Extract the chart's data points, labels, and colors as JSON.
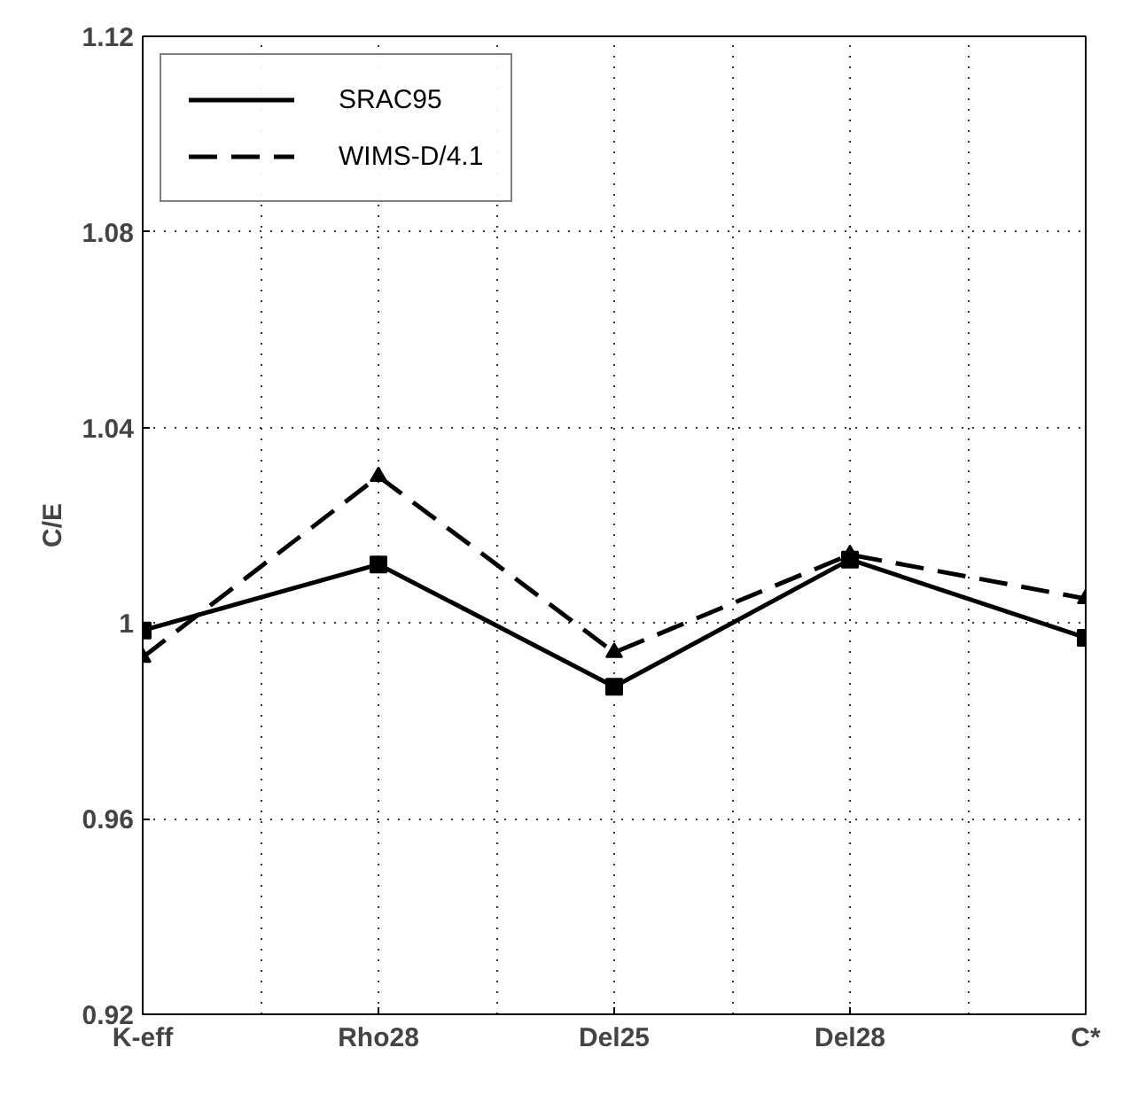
{
  "chart_data": {
    "type": "line",
    "ylabel": "C/E",
    "categories": [
      "K-eff",
      "Rho28",
      "Del25",
      "Del28",
      "C*"
    ],
    "series": [
      {
        "name": "SRAC95",
        "color": "#000000",
        "values": [
          0.9985,
          1.012,
          0.987,
          1.013,
          0.997
        ],
        "marker": "square",
        "line_style": "solid"
      },
      {
        "name": "WIMS-D/4.1",
        "color": "#000000",
        "values": [
          0.993,
          1.03,
          0.994,
          1.014,
          1.005
        ],
        "marker": "triangle",
        "line_style": "dashed"
      }
    ],
    "ylim": [
      0.92,
      1.12
    ],
    "yticks": [
      0.92,
      0.96,
      {
        "value": 1,
        "label": "1"
      },
      1.04,
      1.08,
      1.12
    ],
    "grid": true,
    "legend": "top left"
  }
}
